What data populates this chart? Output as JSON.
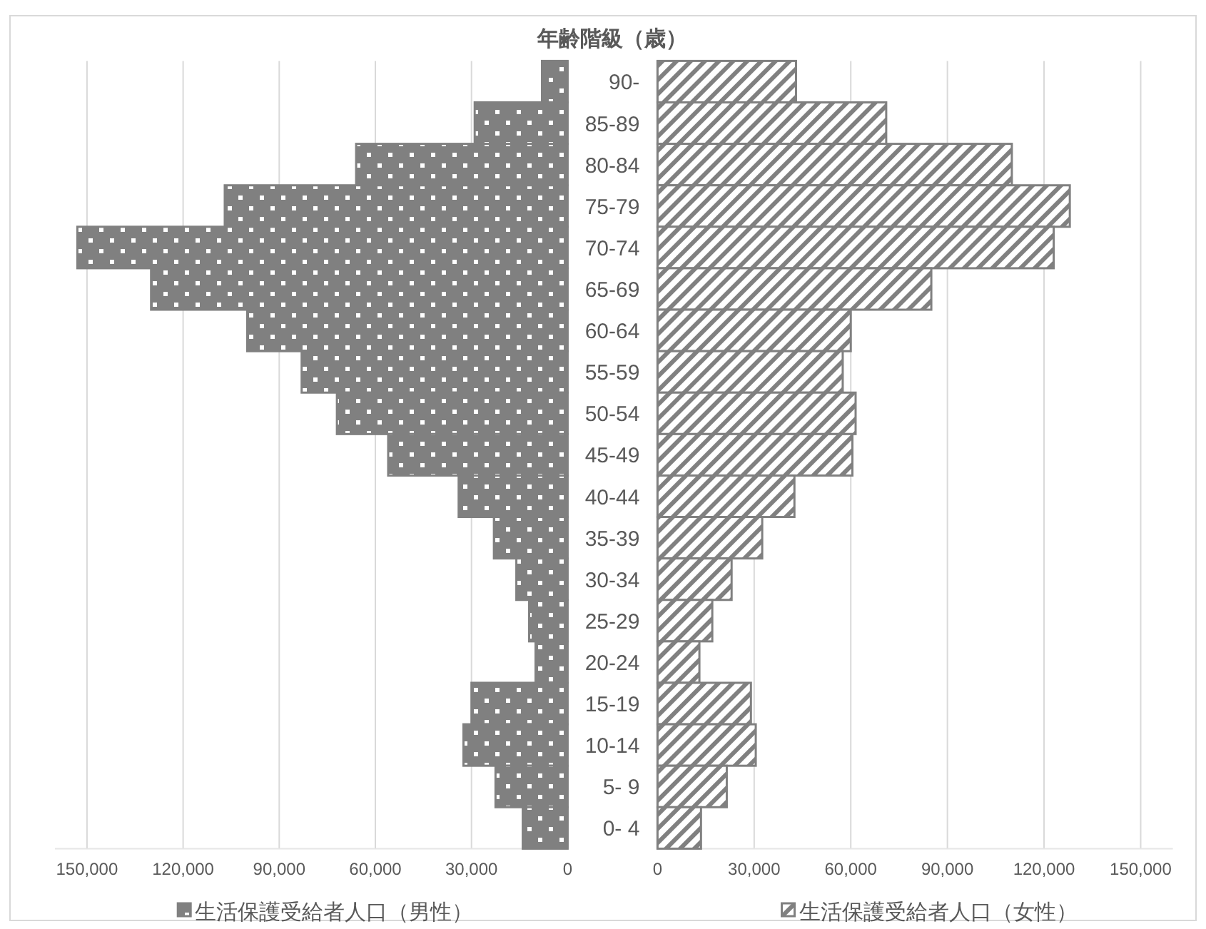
{
  "chart_data": [
    {
      "type": "bar",
      "orientation": "horizontal",
      "ylabel": "年齢階級（歳）",
      "categories": [
        "90-",
        "85-89",
        "80-84",
        "75-79",
        "70-74",
        "65-69",
        "60-64",
        "55-59",
        "50-54",
        "45-49",
        "40-44",
        "35-39",
        "30-34",
        "25-29",
        "20-24",
        "15-19",
        "10-14",
        "5- 9",
        "0- 4"
      ],
      "series": [
        {
          "name": "生活保護受給者人口（男性）",
          "color": "#808080",
          "values": [
            8000,
            29000,
            66000,
            107000,
            153000,
            130000,
            100000,
            83000,
            72000,
            56000,
            34000,
            23000,
            16000,
            12000,
            10000,
            30000,
            32500,
            22500,
            14000
          ]
        }
      ],
      "xlim": [
        160000,
        0
      ],
      "xticks": [
        {
          "value": 150000,
          "label": "150,000"
        },
        {
          "value": 120000,
          "label": "120,000"
        },
        {
          "value": 90000,
          "label": "90,000"
        },
        {
          "value": 60000,
          "label": "60,000"
        },
        {
          "value": 30000,
          "label": "30,000"
        },
        0
      ],
      "grid": "x",
      "legend": "bottom"
    },
    {
      "type": "bar",
      "orientation": "horizontal",
      "categories": [
        null,
        null,
        null,
        null,
        null,
        null,
        null,
        null,
        null,
        null,
        null,
        null,
        null,
        null,
        null,
        null,
        null,
        null,
        null
      ],
      "series": [
        {
          "name": "生活保護受給者人口（女性）",
          "color": "#808080",
          "values": [
            43000,
            71000,
            110000,
            128000,
            123000,
            85000,
            60000,
            57500,
            61500,
            60500,
            42500,
            32500,
            23000,
            17000,
            13000,
            29000,
            30500,
            21500,
            13500
          ]
        }
      ],
      "xlim": [
        0,
        160000
      ],
      "xticks": [
        0,
        {
          "value": 30000,
          "label": "30,000"
        },
        {
          "value": 60000,
          "label": "60,000"
        },
        {
          "value": 90000,
          "label": "90,000"
        },
        {
          "value": 120000,
          "label": "120,000"
        },
        {
          "value": 150000,
          "label": "150,000"
        }
      ],
      "grid": "x",
      "legend": "bottom",
      "tick_labels": "x"
    }
  ]
}
